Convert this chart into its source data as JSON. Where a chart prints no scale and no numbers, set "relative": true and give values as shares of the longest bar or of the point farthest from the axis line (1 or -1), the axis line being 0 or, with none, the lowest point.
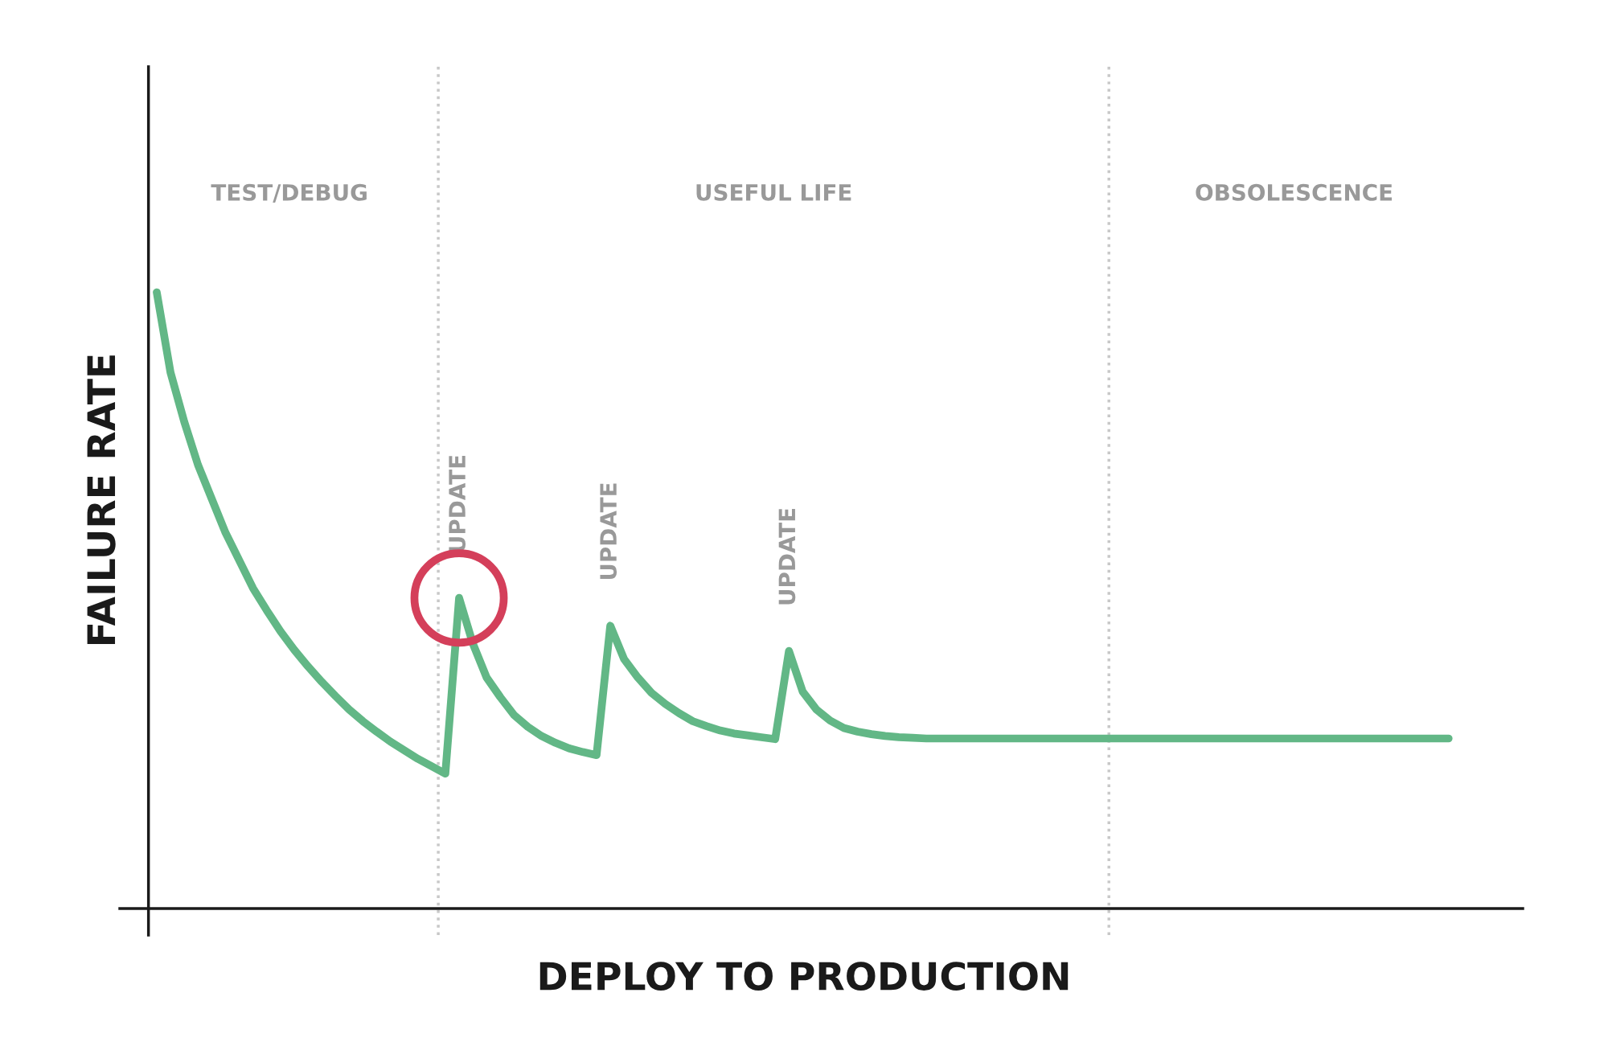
{
  "chart_data": {
    "type": "line",
    "relative": true,
    "xlabel": "DEPLOY TO PRODUCTION",
    "ylabel": "FAILURE RATE",
    "categories": [
      null,
      null,
      null,
      null,
      null,
      null,
      null,
      null,
      null,
      null,
      null,
      null,
      null,
      null,
      null,
      null,
      null,
      null,
      null,
      null,
      null,
      null,
      null,
      null,
      null,
      null,
      null,
      null,
      null,
      null,
      null,
      null,
      null,
      null,
      null,
      null,
      null,
      null,
      null,
      null,
      null,
      null,
      null,
      null,
      null,
      null,
      null,
      null,
      null,
      null,
      null,
      null,
      null,
      null,
      null,
      null,
      null,
      null,
      null,
      null,
      null,
      null,
      null,
      null,
      null,
      null,
      null,
      null,
      null,
      null,
      null,
      null,
      null,
      null,
      null,
      null,
      null,
      null,
      null,
      null,
      null,
      null,
      null,
      null,
      null,
      null,
      null,
      null,
      null,
      null,
      null,
      null,
      null,
      null,
      null
    ],
    "series": [
      {
        "color": "#62b786",
        "values": [
          1.0,
          0.87,
          0.79,
          0.72,
          0.665,
          0.61,
          0.565,
          0.52,
          0.484,
          0.45,
          0.42,
          0.393,
          0.368,
          0.345,
          0.323,
          0.304,
          0.287,
          0.271,
          0.257,
          0.243,
          0.231,
          0.219,
          0.504,
          0.43,
          0.375,
          0.343,
          0.314,
          0.295,
          0.28,
          0.269,
          0.26,
          0.254,
          0.249,
          0.459,
          0.405,
          0.375,
          0.35,
          0.332,
          0.317,
          0.304,
          0.296,
          0.289,
          0.284,
          0.281,
          0.278,
          0.275,
          0.418,
          0.352,
          0.323,
          0.305,
          0.293,
          0.287,
          0.283,
          0.28,
          0.278,
          0.277,
          0.276,
          0.276,
          0.276,
          0.276,
          0.276,
          0.276,
          0.276,
          0.276,
          0.276,
          0.276,
          0.276,
          0.276,
          0.276,
          0.276,
          0.276,
          0.276,
          0.276,
          0.276,
          0.276,
          0.276,
          0.276,
          0.276,
          0.276,
          0.276,
          0.276,
          0.276,
          0.276,
          0.276,
          0.276,
          0.276,
          0.276,
          0.276,
          0.276,
          0.276,
          0.276,
          0.276,
          0.276,
          0.276,
          0.276
        ]
      }
    ],
    "annotations": [
      "TEST/DEBUG",
      "USEFUL LIFE",
      "OBSOLESCENCE",
      {
        "text": "UPDATE",
        "y": 0.504
      },
      {
        "text": "UPDATE",
        "y": 0.459
      },
      {
        "text": "UPDATE",
        "y": 0.418
      }
    ]
  }
}
